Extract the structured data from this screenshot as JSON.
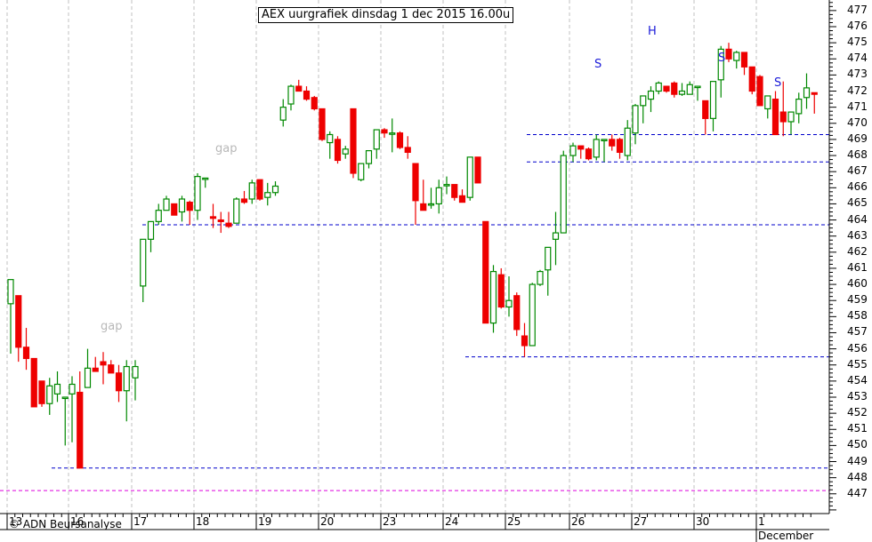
{
  "title": "AEX uurgrafiek dinsdag 1 dec 2015 16.00u",
  "copyright": "© ADN Beursanalyse",
  "colors": {
    "up": "#008800",
    "down": "#ee0000",
    "support_line": "#0000cc",
    "magenta_line": "#dd00dd",
    "grid": "#c0c0c0",
    "annotation": "#1a1ad8",
    "gap_text": "#b8b8b8"
  },
  "annotations": {
    "gap1": "gap",
    "gap2": "gap",
    "s1": "S",
    "h": "H",
    "s2": "S",
    "s3": "S"
  },
  "x_month_label": "December",
  "chart_data": {
    "type": "candlestick",
    "title": "AEX uurgrafiek dinsdag 1 dec 2015 16.00u",
    "xlabel": "",
    "ylabel": "",
    "ylim": [
      446,
      477.5
    ],
    "y_ticks": [
      447,
      448,
      449,
      450,
      451,
      452,
      453,
      454,
      455,
      456,
      457,
      458,
      459,
      460,
      461,
      462,
      463,
      464,
      465,
      466,
      467,
      468,
      469,
      470,
      471,
      472,
      473,
      474,
      475,
      476,
      477
    ],
    "x_day_labels": [
      "13",
      "16",
      "17",
      "18",
      "19",
      "20",
      "23",
      "24",
      "25",
      "26",
      "27",
      "30",
      "1"
    ],
    "x_month": "December",
    "grid": "vertical dashed at day boundaries",
    "horizontal_lines": [
      {
        "price": 469.3,
        "from_day": "25",
        "style": "dashed",
        "color": "blue"
      },
      {
        "price": 467.6,
        "from_day": "25",
        "style": "dashed",
        "color": "blue"
      },
      {
        "price": 463.7,
        "from_day": "17",
        "style": "dashed",
        "color": "blue"
      },
      {
        "price": 455.5,
        "from_day": "24",
        "style": "dashed",
        "color": "blue"
      },
      {
        "price": 448.6,
        "from_day": "16",
        "style": "dashed",
        "color": "blue"
      },
      {
        "price": 447.2,
        "from_day": "13",
        "style": "dashed",
        "color": "magenta"
      }
    ],
    "candles": [
      {
        "day": "13",
        "o": 458.8,
        "h": 459.3,
        "l": 455.7,
        "c": 460.3
      },
      {
        "day": "13",
        "o": 459.3,
        "h": 459.3,
        "l": 455.2,
        "c": 456.1
      },
      {
        "day": "13",
        "o": 456.1,
        "h": 457.3,
        "l": 454.7,
        "c": 455.4
      },
      {
        "day": "13",
        "o": 455.4,
        "h": 455.4,
        "l": 452.4,
        "c": 452.4
      },
      {
        "day": "13",
        "o": 454.0,
        "h": 454.0,
        "l": 452.4,
        "c": 452.6
      },
      {
        "day": "13",
        "o": 452.6,
        "h": 454.2,
        "l": 451.9,
        "c": 453.7
      },
      {
        "day": "13",
        "o": 453.2,
        "h": 454.6,
        "l": 452.7,
        "c": 453.8
      },
      {
        "day": "13",
        "o": 453.0,
        "h": 452.0,
        "l": 450.0,
        "c": 453.0
      },
      {
        "day": "16",
        "o": 453.2,
        "h": 454.3,
        "l": 450.2,
        "c": 453.8
      },
      {
        "day": "16",
        "o": 453.3,
        "h": 454.6,
        "l": 448.6,
        "c": 448.6
      },
      {
        "day": "16",
        "o": 453.6,
        "h": 456.0,
        "l": 453.6,
        "c": 454.8
      },
      {
        "day": "16",
        "o": 454.8,
        "h": 455.5,
        "l": 454.6,
        "c": 454.6
      },
      {
        "day": "16",
        "o": 455.2,
        "h": 455.8,
        "l": 453.8,
        "c": 455.0
      },
      {
        "day": "16",
        "o": 455.0,
        "h": 455.3,
        "l": 454.5,
        "c": 454.5
      },
      {
        "day": "16",
        "o": 454.5,
        "h": 455.0,
        "l": 452.7,
        "c": 453.4
      },
      {
        "day": "16",
        "o": 453.4,
        "h": 455.3,
        "l": 451.5,
        "c": 454.9
      },
      {
        "day": "17",
        "o": 454.2,
        "h": 455.3,
        "l": 452.8,
        "c": 454.9
      },
      {
        "day": "17",
        "o": 459.9,
        "h": 462.8,
        "l": 458.9,
        "c": 462.8
      },
      {
        "day": "17",
        "o": 462.8,
        "h": 463.9,
        "l": 462.0,
        "c": 463.9
      },
      {
        "day": "17",
        "o": 463.9,
        "h": 465.0,
        "l": 463.7,
        "c": 464.6
      },
      {
        "day": "17",
        "o": 464.6,
        "h": 465.5,
        "l": 464.6,
        "c": 465.3
      },
      {
        "day": "17",
        "o": 465.0,
        "h": 465.0,
        "l": 464.3,
        "c": 464.3
      },
      {
        "day": "17",
        "o": 464.5,
        "h": 465.5,
        "l": 463.9,
        "c": 465.3
      },
      {
        "day": "17",
        "o": 465.1,
        "h": 465.2,
        "l": 463.7,
        "c": 464.6
      },
      {
        "day": "18",
        "o": 464.6,
        "h": 466.9,
        "l": 464.0,
        "c": 466.7
      },
      {
        "day": "18",
        "o": 466.6,
        "h": 466.6,
        "l": 466.0,
        "c": 466.6
      },
      {
        "day": "18",
        "o": 464.2,
        "h": 465.0,
        "l": 463.5,
        "c": 464.1
      },
      {
        "day": "18",
        "o": 464.0,
        "h": 464.5,
        "l": 463.2,
        "c": 463.9
      },
      {
        "day": "18",
        "o": 463.8,
        "h": 464.5,
        "l": 463.5,
        "c": 463.6
      },
      {
        "day": "18",
        "o": 463.8,
        "h": 465.4,
        "l": 463.8,
        "c": 465.3
      },
      {
        "day": "18",
        "o": 465.3,
        "h": 465.8,
        "l": 465.0,
        "c": 465.1
      },
      {
        "day": "18",
        "o": 465.3,
        "h": 466.5,
        "l": 465.0,
        "c": 466.3
      },
      {
        "day": "19",
        "o": 466.5,
        "h": 466.5,
        "l": 465.2,
        "c": 465.3
      },
      {
        "day": "19",
        "o": 465.4,
        "h": 466.3,
        "l": 464.9,
        "c": 465.7
      },
      {
        "day": "19",
        "o": 465.7,
        "h": 466.4,
        "l": 465.5,
        "c": 466.1
      },
      {
        "day": "19",
        "o": 470.2,
        "h": 471.5,
        "l": 469.8,
        "c": 471.0
      },
      {
        "day": "19",
        "o": 471.2,
        "h": 472.4,
        "l": 470.8,
        "c": 472.3
      },
      {
        "day": "19",
        "o": 472.3,
        "h": 472.7,
        "l": 472.0,
        "c": 472.0
      },
      {
        "day": "19",
        "o": 472.0,
        "h": 472.3,
        "l": 471.4,
        "c": 471.5
      },
      {
        "day": "19",
        "o": 471.6,
        "h": 471.7,
        "l": 470.8,
        "c": 470.9
      },
      {
        "day": "20",
        "o": 470.9,
        "h": 470.9,
        "l": 468.9,
        "c": 469.0
      },
      {
        "day": "20",
        "o": 468.8,
        "h": 469.5,
        "l": 467.8,
        "c": 469.3
      },
      {
        "day": "20",
        "o": 469.0,
        "h": 469.2,
        "l": 467.5,
        "c": 467.7
      },
      {
        "day": "20",
        "o": 468.1,
        "h": 468.6,
        "l": 467.8,
        "c": 468.4
      },
      {
        "day": "20",
        "o": 470.9,
        "h": 470.9,
        "l": 466.6,
        "c": 466.9
      },
      {
        "day": "20",
        "o": 466.5,
        "h": 467.5,
        "l": 466.4,
        "c": 467.5
      },
      {
        "day": "20",
        "o": 467.5,
        "h": 468.2,
        "l": 467.2,
        "c": 468.3
      },
      {
        "day": "20",
        "o": 468.4,
        "h": 469.6,
        "l": 467.8,
        "c": 469.6
      },
      {
        "day": "23",
        "o": 469.6,
        "h": 469.7,
        "l": 469.1,
        "c": 469.4
      },
      {
        "day": "23",
        "o": 469.4,
        "h": 470.3,
        "l": 468.2,
        "c": 469.4
      },
      {
        "day": "23",
        "o": 469.4,
        "h": 469.5,
        "l": 468.4,
        "c": 468.5
      },
      {
        "day": "23",
        "o": 468.5,
        "h": 469.2,
        "l": 467.8,
        "c": 468.2
      },
      {
        "day": "23",
        "o": 467.5,
        "h": 467.5,
        "l": 463.7,
        "c": 465.2
      },
      {
        "day": "23",
        "o": 465.0,
        "h": 466.5,
        "l": 464.7,
        "c": 464.6
      },
      {
        "day": "23",
        "o": 465.0,
        "h": 466.0,
        "l": 464.7,
        "c": 465.0
      },
      {
        "day": "23",
        "o": 465.0,
        "h": 466.5,
        "l": 464.4,
        "c": 466.0
      },
      {
        "day": "24",
        "o": 466.2,
        "h": 466.7,
        "l": 465.6,
        "c": 466.2
      },
      {
        "day": "24",
        "o": 466.2,
        "h": 466.2,
        "l": 465.2,
        "c": 465.4
      },
      {
        "day": "24",
        "o": 465.5,
        "h": 465.9,
        "l": 465.1,
        "c": 465.1
      },
      {
        "day": "24",
        "o": 465.4,
        "h": 467.9,
        "l": 465.2,
        "c": 467.9
      },
      {
        "day": "24",
        "o": 467.9,
        "h": 467.9,
        "l": 466.3,
        "c": 466.3
      },
      {
        "day": "24",
        "o": 463.9,
        "h": 463.9,
        "l": 457.6,
        "c": 457.6
      },
      {
        "day": "24",
        "o": 457.6,
        "h": 461.2,
        "l": 457.0,
        "c": 460.8
      },
      {
        "day": "24",
        "o": 460.6,
        "h": 461.0,
        "l": 458.5,
        "c": 458.6
      },
      {
        "day": "25",
        "o": 458.6,
        "h": 460.5,
        "l": 458.0,
        "c": 459.0
      },
      {
        "day": "25",
        "o": 459.3,
        "h": 459.5,
        "l": 456.8,
        "c": 457.2
      },
      {
        "day": "25",
        "o": 456.8,
        "h": 457.6,
        "l": 455.5,
        "c": 456.2
      },
      {
        "day": "25",
        "o": 456.2,
        "h": 460.1,
        "l": 456.2,
        "c": 460.0
      },
      {
        "day": "25",
        "o": 460.0,
        "h": 460.9,
        "l": 459.9,
        "c": 460.8
      },
      {
        "day": "25",
        "o": 460.9,
        "h": 462.3,
        "l": 459.3,
        "c": 462.3
      },
      {
        "day": "25",
        "o": 462.8,
        "h": 464.5,
        "l": 461.2,
        "c": 463.2
      },
      {
        "day": "25",
        "o": 463.2,
        "h": 468.3,
        "l": 463.2,
        "c": 468.0
      },
      {
        "day": "26",
        "o": 468.0,
        "h": 468.8,
        "l": 467.6,
        "c": 468.6
      },
      {
        "day": "26",
        "o": 468.6,
        "h": 468.6,
        "l": 467.8,
        "c": 468.4
      },
      {
        "day": "26",
        "o": 468.4,
        "h": 468.5,
        "l": 467.7,
        "c": 467.8
      },
      {
        "day": "26",
        "o": 467.9,
        "h": 469.3,
        "l": 467.7,
        "c": 469.0
      },
      {
        "day": "26",
        "o": 469.0,
        "h": 469.0,
        "l": 467.6,
        "c": 469.0
      },
      {
        "day": "26",
        "o": 469.0,
        "h": 469.3,
        "l": 468.3,
        "c": 468.6
      },
      {
        "day": "26",
        "o": 469.0,
        "h": 469.1,
        "l": 467.8,
        "c": 468.2
      },
      {
        "day": "26",
        "o": 468.0,
        "h": 470.2,
        "l": 467.7,
        "c": 469.7
      },
      {
        "day": "27",
        "o": 469.4,
        "h": 471.2,
        "l": 468.7,
        "c": 471.1
      },
      {
        "day": "27",
        "o": 471.1,
        "h": 471.5,
        "l": 470.0,
        "c": 471.7
      },
      {
        "day": "27",
        "o": 471.5,
        "h": 472.3,
        "l": 470.7,
        "c": 472.0
      },
      {
        "day": "27",
        "o": 472.0,
        "h": 472.6,
        "l": 471.8,
        "c": 472.5
      },
      {
        "day": "27",
        "o": 472.3,
        "h": 472.3,
        "l": 471.9,
        "c": 472.0
      },
      {
        "day": "27",
        "o": 472.5,
        "h": 472.6,
        "l": 471.6,
        "c": 471.8
      },
      {
        "day": "27",
        "o": 471.8,
        "h": 472.5,
        "l": 471.7,
        "c": 472.0
      },
      {
        "day": "27",
        "o": 471.8,
        "h": 472.6,
        "l": 471.8,
        "c": 472.4
      },
      {
        "day": "30",
        "o": 472.3,
        "h": 472.3,
        "l": 471.4,
        "c": 472.3
      },
      {
        "day": "30",
        "o": 471.4,
        "h": 471.4,
        "l": 469.3,
        "c": 470.3
      },
      {
        "day": "30",
        "o": 470.3,
        "h": 472.4,
        "l": 469.5,
        "c": 472.6
      },
      {
        "day": "30",
        "o": 472.7,
        "h": 474.8,
        "l": 471.6,
        "c": 474.6
      },
      {
        "day": "30",
        "o": 474.6,
        "h": 475.0,
        "l": 473.8,
        "c": 474.0
      },
      {
        "day": "30",
        "o": 473.9,
        "h": 474.5,
        "l": 473.4,
        "c": 474.4
      },
      {
        "day": "30",
        "o": 474.4,
        "h": 474.4,
        "l": 473.0,
        "c": 473.5
      },
      {
        "day": "30",
        "o": 473.5,
        "h": 473.5,
        "l": 471.8,
        "c": 472.0
      },
      {
        "day": "1",
        "o": 472.9,
        "h": 473.0,
        "l": 471.2,
        "c": 471.1
      },
      {
        "day": "1",
        "o": 470.9,
        "h": 471.6,
        "l": 470.3,
        "c": 471.7
      },
      {
        "day": "1",
        "o": 471.5,
        "h": 472.0,
        "l": 469.3,
        "c": 469.3
      },
      {
        "day": "1",
        "o": 470.7,
        "h": 472.6,
        "l": 469.2,
        "c": 470.1
      },
      {
        "day": "1",
        "o": 470.1,
        "h": 470.6,
        "l": 469.3,
        "c": 470.7
      },
      {
        "day": "1",
        "o": 470.6,
        "h": 471.9,
        "l": 470.0,
        "c": 471.5
      },
      {
        "day": "1",
        "o": 471.6,
        "h": 473.1,
        "l": 470.9,
        "c": 472.2
      },
      {
        "day": "1",
        "o": 471.9,
        "h": 471.9,
        "l": 470.6,
        "c": 471.8
      }
    ]
  }
}
